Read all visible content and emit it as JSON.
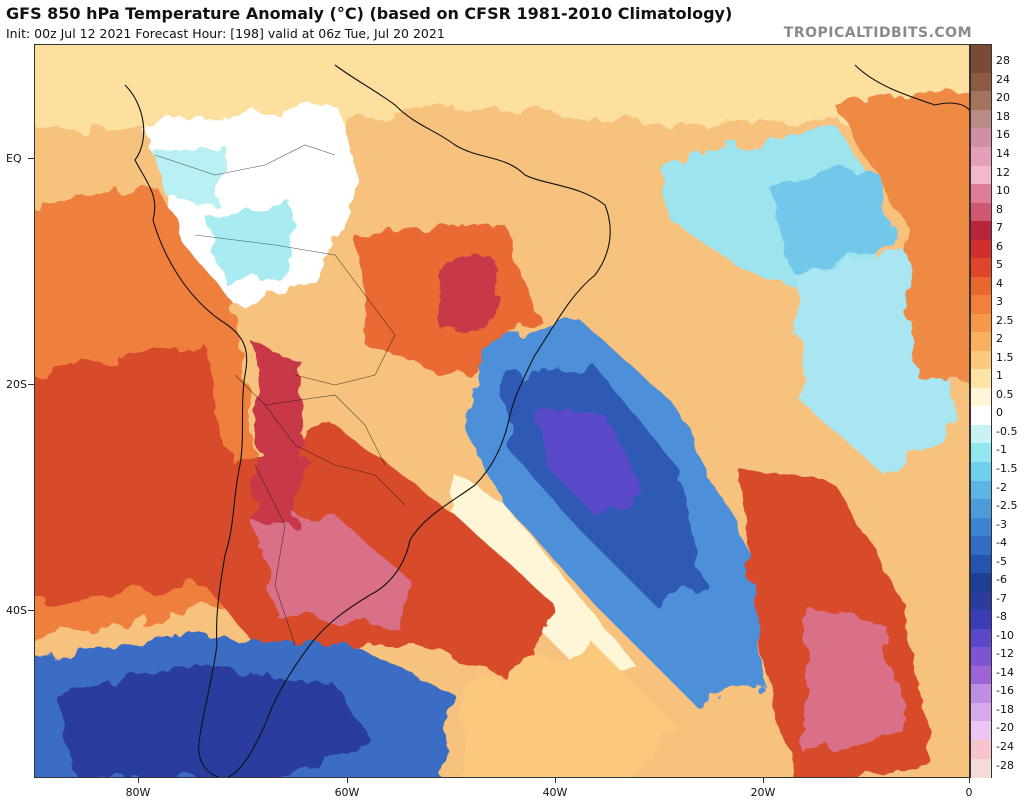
{
  "header": {
    "title": "GFS 850 hPa Temperature Anomaly (°C) (based on CFSR 1981-2010 Climatology)",
    "subtitle": "Init: 00z Jul 12 2021   Forecast Hour: [198]   valid at 06z Tue, Jul 20 2021",
    "brand": "TROPICALTIDBITS.COM"
  },
  "axes": {
    "lat_labels": [
      "EQ",
      "20S",
      "40S"
    ],
    "lon_labels": [
      "80W",
      "60W",
      "40W",
      "20W",
      "0"
    ]
  },
  "colorbar": {
    "labels": [
      "28",
      "24",
      "20",
      "18",
      "16",
      "14",
      "12",
      "10",
      "8",
      "7",
      "6",
      "5",
      "4",
      "3",
      "2.5",
      "2",
      "1.5",
      "1",
      "0.5",
      "0",
      "-0.5",
      "-1",
      "-1.5",
      "-2",
      "-2.5",
      "-3",
      "-4",
      "-5",
      "-6",
      "-7",
      "-8",
      "-10",
      "-12",
      "-14",
      "-16",
      "-18",
      "-20",
      "-24",
      "-28"
    ],
    "colors": [
      "#7a4a34",
      "#8e5a44",
      "#a2745e",
      "#b98a86",
      "#cf8fa6",
      "#e49fba",
      "#f4b8cc",
      "#e07d96",
      "#cd5870",
      "#b8243a",
      "#cf2f2b",
      "#df4528",
      "#e9672f",
      "#f1813a",
      "#f59849",
      "#f8b05e",
      "#fbc97c",
      "#fde4a6",
      "#fff6d8",
      "#ffffff",
      "#c7f3f5",
      "#92e6ee",
      "#70cfea",
      "#5bb6e4",
      "#4c9cda",
      "#3f84d0",
      "#336cc4",
      "#2653b0",
      "#1e3f96",
      "#2a3d9e",
      "#3b3db4",
      "#5a48c8",
      "#7b56d0",
      "#9d64d8",
      "#c08de4",
      "#d8a8ec",
      "#ecc6f2",
      "#f5c4cc",
      "#f3dcd8"
    ]
  },
  "map": {
    "background": "#f6c27e",
    "cold_core": "#3a4fb3",
    "warm_core": "#cf2f2b",
    "hot_core": "#d96f88"
  }
}
